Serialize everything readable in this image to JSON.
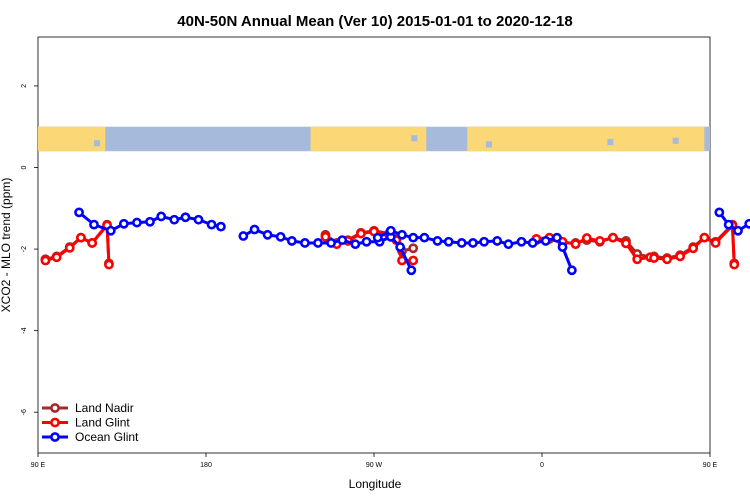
{
  "chart_data": {
    "type": "line",
    "title": "40N-50N Annual Mean (Ver 10)   2015-01-01 to 2020-12-18",
    "xlabel": "Longitude",
    "ylabel": "XCO2 - MLO trend (ppm)",
    "xlim": [
      90,
      450
    ],
    "ylim": [
      -7,
      3.2
    ],
    "x_ticks": [
      {
        "value": 90,
        "label": "90 E"
      },
      {
        "value": 180,
        "label": "180"
      },
      {
        "value": 270,
        "label": "90 W"
      },
      {
        "value": 360,
        "label": "0"
      },
      {
        "value": 450,
        "label": "90 E"
      },
      {
        "value": 540,
        "label": "180"
      }
    ],
    "y_ticks": [
      {
        "value": 2,
        "label": "2"
      },
      {
        "value": 0,
        "label": "0"
      },
      {
        "value": -2,
        "label": "-2"
      },
      {
        "value": -4,
        "label": "-4"
      },
      {
        "value": -6,
        "label": "-6"
      }
    ],
    "map_strip": {
      "y_top": 1.0,
      "y_bottom": 0.4,
      "land_color": "#fbd775",
      "ocean_color": "#a6bbdb"
    },
    "legend": {
      "position": "bottom-left"
    },
    "series": [
      {
        "name": "Land Nadir",
        "color": "#a52a2a",
        "segments": [
          [
            [
              94,
              -2.25
            ],
            [
              100,
              -2.18
            ],
            [
              107,
              -1.95
            ],
            [
              113,
              -1.72
            ],
            [
              119,
              -1.85
            ],
            [
              127,
              -1.4
            ],
            [
              128,
              -2.35
            ]
          ],
          [
            [
              244,
              -1.65
            ],
            [
              250,
              -1.85
            ],
            [
              256,
              -1.78
            ],
            [
              263,
              -1.6
            ],
            [
              270,
              -1.55
            ],
            [
              278,
              -1.62
            ],
            [
              282,
              -1.75
            ],
            [
              285,
              -2.05
            ],
            [
              291,
              -1.98
            ]
          ],
          [
            [
              357,
              -1.78
            ],
            [
              364,
              -1.75
            ],
            [
              371,
              -1.85
            ],
            [
              378,
              -1.85
            ],
            [
              384,
              -1.78
            ],
            [
              391,
              -1.82
            ],
            [
              398,
              -1.72
            ],
            [
              405,
              -1.8
            ],
            [
              411,
              -2.12
            ],
            [
              418,
              -2.2
            ]
          ],
          [
            [
              420,
              -2.18
            ],
            [
              427,
              -2.22
            ],
            [
              434,
              -2.15
            ],
            [
              441,
              -1.95
            ],
            [
              447,
              -1.72
            ],
            [
              453,
              -1.82
            ],
            [
              462,
              -1.4
            ],
            [
              463,
              -2.35
            ]
          ]
        ]
      },
      {
        "name": "Land Glint",
        "color": "#ff0000",
        "segments": [
          [
            [
              94,
              -2.28
            ],
            [
              100,
              -2.2
            ],
            [
              107,
              -1.97
            ],
            [
              113,
              -1.72
            ],
            [
              119,
              -1.85
            ],
            [
              127,
              -1.42
            ],
            [
              128,
              -2.38
            ]
          ],
          [
            [
              244,
              -1.7
            ],
            [
              250,
              -1.88
            ],
            [
              256,
              -1.8
            ],
            [
              263,
              -1.62
            ],
            [
              270,
              -1.57
            ],
            [
              278,
              -1.64
            ],
            [
              282,
              -1.78
            ],
            [
              285,
              -2.28
            ],
            [
              291,
              -2.28
            ]
          ],
          [
            [
              357,
              -1.75
            ],
            [
              364,
              -1.72
            ],
            [
              371,
              -1.82
            ],
            [
              378,
              -1.88
            ],
            [
              384,
              -1.73
            ],
            [
              391,
              -1.8
            ],
            [
              398,
              -1.72
            ],
            [
              405,
              -1.86
            ],
            [
              411,
              -2.25
            ],
            [
              418,
              -2.2
            ]
          ],
          [
            [
              420,
              -2.22
            ],
            [
              427,
              -2.25
            ],
            [
              434,
              -2.18
            ],
            [
              441,
              -1.98
            ],
            [
              447,
              -1.72
            ],
            [
              453,
              -1.85
            ],
            [
              462,
              -1.42
            ],
            [
              463,
              -2.38
            ]
          ]
        ]
      },
      {
        "name": "Ocean Glint",
        "color": "#0000ff",
        "segments": [
          [
            [
              112,
              -1.1
            ],
            [
              120,
              -1.4
            ],
            [
              129,
              -1.55
            ],
            [
              136,
              -1.38
            ],
            [
              143,
              -1.35
            ],
            [
              150,
              -1.33
            ],
            [
              156,
              -1.2
            ],
            [
              163,
              -1.28
            ],
            [
              169,
              -1.22
            ],
            [
              176,
              -1.28
            ],
            [
              183,
              -1.4
            ],
            [
              188,
              -1.45
            ]
          ],
          [
            [
              200,
              -1.68
            ],
            [
              206,
              -1.52
            ],
            [
              213,
              -1.65
            ],
            [
              220,
              -1.7
            ],
            [
              226,
              -1.8
            ],
            [
              233,
              -1.85
            ],
            [
              240,
              -1.85
            ],
            [
              247,
              -1.85
            ],
            [
              253,
              -1.78
            ],
            [
              260,
              -1.88
            ],
            [
              266,
              -1.82
            ],
            [
              273,
              -1.82
            ],
            [
              279,
              -1.7
            ],
            [
              284,
              -1.95
            ],
            [
              290,
              -2.52
            ]
          ]
        ]
      },
      {
        "name": "Ocean Glint",
        "color": "#0000ff",
        "segments": [
          [
            [
              272,
              -1.72
            ],
            [
              279,
              -1.55
            ],
            [
              285,
              -1.65
            ],
            [
              291,
              -1.72
            ],
            [
              297,
              -1.72
            ],
            [
              304,
              -1.8
            ],
            [
              310,
              -1.82
            ],
            [
              317,
              -1.85
            ],
            [
              323,
              -1.85
            ],
            [
              329,
              -1.82
            ],
            [
              336,
              -1.8
            ],
            [
              342,
              -1.88
            ],
            [
              349,
              -1.82
            ],
            [
              355,
              -1.85
            ],
            [
              362,
              -1.8
            ],
            [
              368,
              -1.72
            ],
            [
              371,
              -1.95
            ],
            [
              376,
              -2.52
            ]
          ]
        ]
      },
      {
        "name": "Ocean Glint",
        "color": "#0000ff",
        "segments": [
          [
            [
              455,
              -1.1
            ],
            [
              460,
              -1.4
            ],
            [
              465,
              -1.55
            ],
            [
              471,
              -1.38
            ],
            [
              478,
              -1.35
            ],
            [
              484,
              -1.3
            ],
            [
              490,
              -1.28
            ]
          ]
        ]
      }
    ]
  }
}
